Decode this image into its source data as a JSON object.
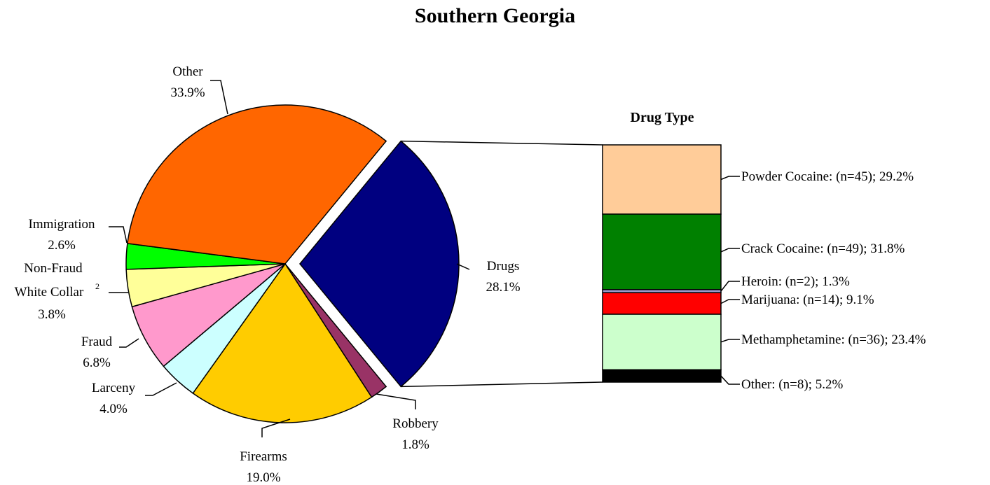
{
  "chart_data": [
    {
      "type": "pie",
      "title": "Southern Georgia",
      "slices": [
        {
          "label": "Drugs",
          "value": 28.1,
          "label_text": "28.1%",
          "color": "#000080",
          "exploded": true
        },
        {
          "label": "Robbery",
          "value": 1.8,
          "label_text": "1.8%",
          "color": "#993366"
        },
        {
          "label": "Firearms",
          "value": 19.0,
          "label_text": "19.0%",
          "color": "#FFCC00"
        },
        {
          "label": "Larceny",
          "value": 4.0,
          "label_text": "4.0%",
          "color": "#CCFFFF"
        },
        {
          "label": "Fraud",
          "value": 6.8,
          "label_text": "6.8%",
          "color": "#FF99CC"
        },
        {
          "label": "Non-Fraud White Collar",
          "label_line1": "Non-Fraud",
          "label_line2": "White Collar",
          "superscript": "2",
          "value": 3.8,
          "label_text": "3.8%",
          "color": "#FFFF99"
        },
        {
          "label": "Immigration",
          "value": 2.6,
          "label_text": "2.6%",
          "color": "#00FF00"
        },
        {
          "label": "Other",
          "value": 33.9,
          "label_text": "33.9%",
          "color": "#FF6600"
        }
      ]
    },
    {
      "type": "bar",
      "stacked": true,
      "title": "Drug Type",
      "segments": [
        {
          "label": "Powder Cocaine",
          "n": 45,
          "value": 29.2,
          "text": "Powder Cocaine:  (n=45); 29.2%",
          "color": "#FFCC99"
        },
        {
          "label": "Crack Cocaine",
          "n": 49,
          "value": 31.8,
          "text": "Crack Cocaine:  (n=49); 31.8%",
          "color": "#008000"
        },
        {
          "label": "Heroin",
          "n": 2,
          "value": 1.3,
          "text": "Heroin:  (n=2); 1.3%",
          "color": "#9999CC"
        },
        {
          "label": "Marijuana",
          "n": 14,
          "value": 9.1,
          "text": "Marijuana:  (n=14); 9.1%",
          "color": "#FF0000"
        },
        {
          "label": "Methamphetamine",
          "n": 36,
          "value": 23.4,
          "text": "Methamphetamine:  (n=36); 23.4%",
          "color": "#CCFFCC"
        },
        {
          "label": "Other",
          "n": 8,
          "value": 5.2,
          "text": "Other:  (n=8); 5.2%",
          "color": "#000000"
        }
      ]
    }
  ]
}
